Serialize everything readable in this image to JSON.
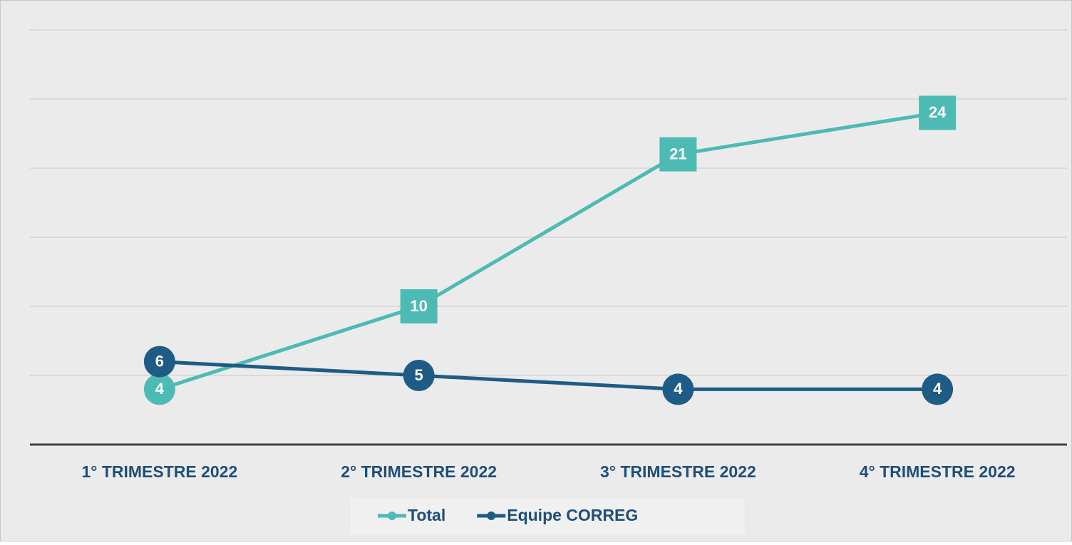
{
  "chart_data": {
    "type": "line",
    "categories": [
      "1° TRIMESTRE 2022",
      "2° TRIMESTRE 2022",
      "3° TRIMESTRE 2022",
      "4° TRIMESTRE 2022"
    ],
    "series": [
      {
        "name": "Total",
        "color": "#4dbab3",
        "values": [
          4,
          10,
          21,
          24
        ]
      },
      {
        "name": "Equipe CORREG",
        "color": "#1f5c85",
        "values": [
          6,
          5,
          4,
          4
        ]
      }
    ],
    "ylim": [
      0,
      30
    ],
    "yticks": [
      0,
      5,
      10,
      15,
      20,
      25,
      30
    ],
    "grid": true,
    "legend": "bottom"
  }
}
